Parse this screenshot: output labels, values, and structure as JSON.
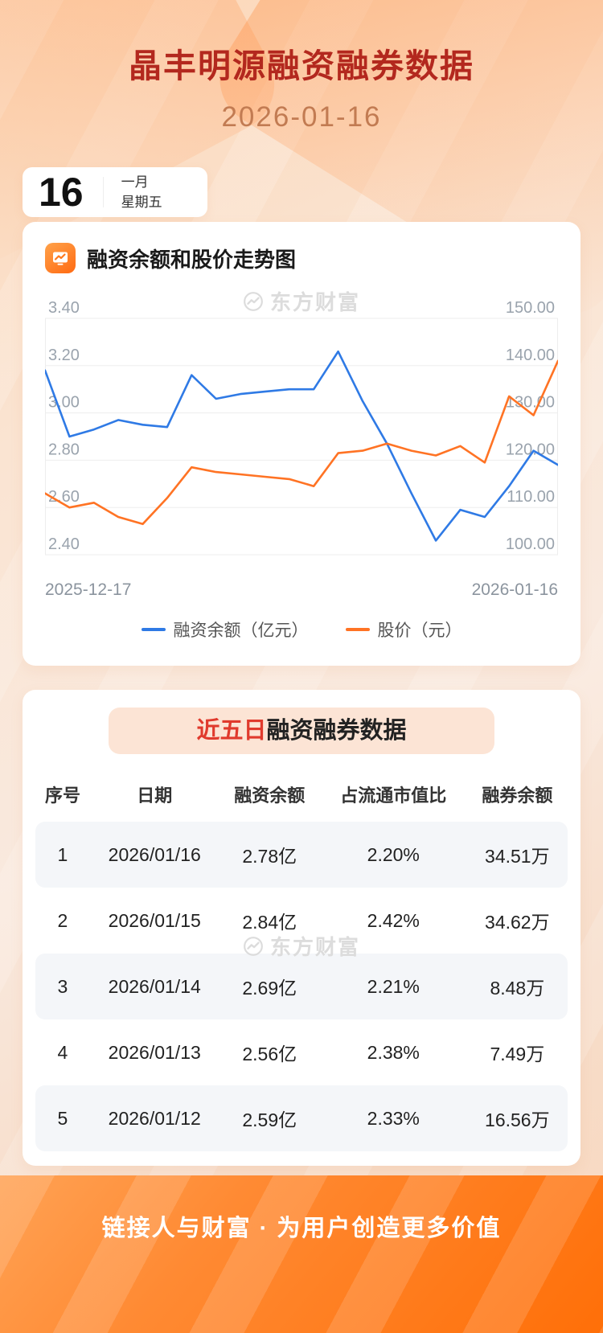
{
  "page": {
    "title": "晶丰明源融资融券数据",
    "date": "2026-01-16",
    "footer": "链接人与财富 · 为用户创造更多价值"
  },
  "colors": {
    "title_red": "#b3281e",
    "date_brown": "#c27b52",
    "highlight_red": "#e03a2d",
    "line_blue": "#2f7ae5",
    "line_orange": "#ff7324",
    "footer_orange": "#ff6f08"
  },
  "calendar": {
    "day": "16",
    "month": "一月",
    "weekday": "星期五"
  },
  "chart_section": {
    "title": "融资余额和股价走势图",
    "watermark": "东方财富",
    "legend": [
      {
        "label": "融资余额（亿元）",
        "color": "#2f7ae5"
      },
      {
        "label": "股价（元）",
        "color": "#ff7324"
      }
    ]
  },
  "chart_data": [
    {
      "type": "line",
      "title": "融资余额和股价走势图",
      "x": [
        "2025-12-17",
        "2025-12-18",
        "2025-12-19",
        "2025-12-22",
        "2025-12-23",
        "2025-12-24",
        "2025-12-25",
        "2025-12-26",
        "2025-12-29",
        "2025-12-30",
        "2025-12-31",
        "2026-01-02",
        "2026-01-05",
        "2026-01-06",
        "2026-01-07",
        "2026-01-08",
        "2026-01-09",
        "2026-01-12",
        "2026-01-13",
        "2026-01-14",
        "2026-01-15",
        "2026-01-16"
      ],
      "x_labels": [
        "2025-12-17",
        "2026-01-16"
      ],
      "ylim_left": [
        2.4,
        3.4
      ],
      "ylim_right": [
        100,
        150
      ],
      "left_ticks": [
        "3.40",
        "3.20",
        "3.00",
        "2.80",
        "2.60",
        "2.40"
      ],
      "right_ticks": [
        "150.00",
        "140.00",
        "130.00",
        "120.00",
        "110.00",
        "100.00"
      ],
      "grid": true,
      "legend_position": "bottom",
      "series": [
        {
          "name": "融资余额（亿元）",
          "axis": "left",
          "color": "#2f7ae5",
          "values": [
            3.18,
            2.9,
            2.93,
            2.97,
            2.95,
            2.94,
            3.16,
            3.06,
            3.08,
            3.09,
            3.1,
            3.1,
            3.26,
            3.05,
            2.87,
            2.66,
            2.46,
            2.59,
            2.56,
            2.69,
            2.84,
            2.78
          ]
        },
        {
          "name": "股价（元）",
          "axis": "right",
          "color": "#ff7324",
          "values": [
            113,
            110,
            111,
            108,
            106.5,
            112,
            118.5,
            117.5,
            117,
            116.5,
            116,
            114.5,
            121.5,
            122,
            123.5,
            122,
            121,
            123,
            119.5,
            133.5,
            129.5,
            141
          ]
        }
      ]
    },
    {
      "type": "table",
      "title": "近五日融资融券数据",
      "columns": [
        "序号",
        "日期",
        "融资余额",
        "占流通市值比",
        "融券余额"
      ],
      "rows": [
        [
          "1",
          "2026/01/16",
          "2.78亿",
          "2.20%",
          "34.51万"
        ],
        [
          "2",
          "2026/01/15",
          "2.84亿",
          "2.42%",
          "34.62万"
        ],
        [
          "3",
          "2026/01/14",
          "2.69亿",
          "2.21%",
          "8.48万"
        ],
        [
          "4",
          "2026/01/13",
          "2.56亿",
          "2.38%",
          "7.49万"
        ],
        [
          "5",
          "2026/01/12",
          "2.59亿",
          "2.33%",
          "16.56万"
        ]
      ]
    }
  ],
  "table_section": {
    "title_highlight": "近五日",
    "title_rest": "融资融券数据",
    "watermark": "东方财富",
    "columns": [
      "序号",
      "日期",
      "融资余额",
      "占流通市值比",
      "融券余额"
    ],
    "rows": [
      [
        "1",
        "2026/01/16",
        "2.78亿",
        "2.20%",
        "34.51万"
      ],
      [
        "2",
        "2026/01/15",
        "2.84亿",
        "2.42%",
        "34.62万"
      ],
      [
        "3",
        "2026/01/14",
        "2.69亿",
        "2.21%",
        "8.48万"
      ],
      [
        "4",
        "2026/01/13",
        "2.56亿",
        "2.38%",
        "7.49万"
      ],
      [
        "5",
        "2026/01/12",
        "2.59亿",
        "2.33%",
        "16.56万"
      ]
    ]
  }
}
